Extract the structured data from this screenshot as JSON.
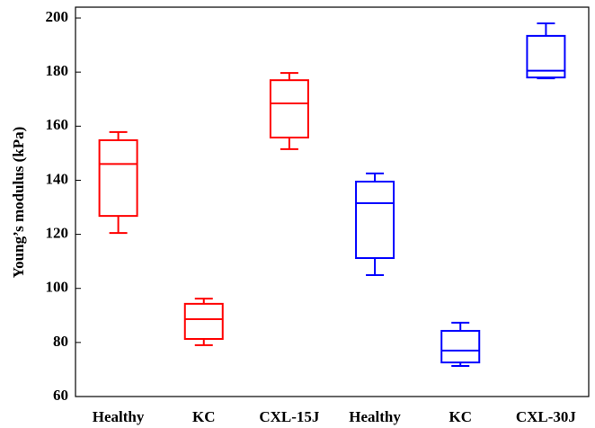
{
  "chart_data": {
    "type": "box",
    "y_label": "Young’s modulus (kPa)",
    "categories": [
      "Healthy",
      "KC",
      "CXL-15J",
      "Healthy",
      "KC",
      "CXL-30J"
    ],
    "boxes": [
      {
        "color": "#ff0000",
        "min": 120.5,
        "q1": 126.8,
        "median": 146,
        "q3": 154.8,
        "max": 157.8
      },
      {
        "color": "#ff0000",
        "min": 79,
        "q1": 81.3,
        "median": 88.6,
        "q3": 94.3,
        "max": 96.2
      },
      {
        "color": "#ff0000",
        "min": 151.5,
        "q1": 155.8,
        "median": 168.4,
        "q3": 177,
        "max": 179.7
      },
      {
        "color": "#0000ff",
        "min": 104.9,
        "q1": 111.2,
        "median": 131.5,
        "q3": 139.5,
        "max": 142.5
      },
      {
        "color": "#0000ff",
        "min": 71.3,
        "q1": 72.6,
        "median": 77,
        "q3": 84.3,
        "max": 87.3
      },
      {
        "color": "#0000ff",
        "min": 177.7,
        "q1": 178,
        "median": 180.5,
        "q3": 193.4,
        "max": 198
      }
    ],
    "ylim": [
      60,
      204
    ],
    "yticks": [
      60,
      80,
      100,
      120,
      140,
      160,
      180,
      200
    ]
  }
}
